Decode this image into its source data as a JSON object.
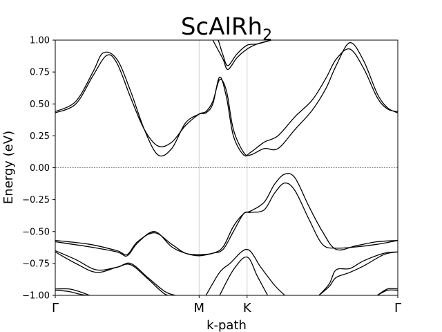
{
  "chart_data": {
    "type": "line",
    "title": "ScAlRh",
    "title_subscript": "2",
    "xlabel": "k-path",
    "ylabel": "Energy (eV)",
    "ylim": [
      -1.0,
      1.0
    ],
    "yticks": [
      -1.0,
      -0.75,
      -0.5,
      -0.25,
      0.0,
      0.25,
      0.5,
      0.75,
      1.0
    ],
    "ytick_labels": [
      "−1.00",
      "−0.75",
      "−0.50",
      "−0.25",
      "0.00",
      "0.25",
      "0.50",
      "0.75",
      "1.00"
    ],
    "xlim": [
      0,
      5
    ],
    "kpoints": [
      {
        "label": "Γ",
        "x": 0
      },
      {
        "label": "M",
        "x": 2.1
      },
      {
        "label": "K",
        "x": 2.8
      },
      {
        "label": "Γ",
        "x": 5
      }
    ],
    "fermi_level": 0.0,
    "fermi_color": "#ff0000",
    "line_color": "#000000",
    "grid": "vertical at high-symmetry points",
    "series": [
      {
        "values": [
          [
            0,
            0.43
          ],
          [
            0.3,
            0.5
          ],
          [
            0.55,
            0.72
          ],
          [
            0.75,
            0.88
          ],
          [
            0.9,
            0.82
          ],
          [
            1.1,
            0.55
          ],
          [
            1.3,
            0.3
          ],
          [
            1.5,
            0.17
          ],
          [
            1.7,
            0.2
          ],
          [
            1.9,
            0.33
          ],
          [
            2.1,
            0.42
          ],
          [
            2.2,
            0.44
          ],
          [
            2.3,
            0.52
          ],
          [
            2.4,
            0.69
          ],
          [
            2.5,
            0.6
          ],
          [
            2.6,
            0.3
          ],
          [
            2.75,
            0.12
          ],
          [
            2.85,
            0.1
          ],
          [
            3.05,
            0.15
          ],
          [
            3.25,
            0.15
          ],
          [
            3.5,
            0.3
          ],
          [
            3.75,
            0.45
          ],
          [
            3.95,
            0.62
          ],
          [
            4.1,
            0.8
          ],
          [
            4.3,
            0.98
          ],
          [
            4.5,
            0.84
          ],
          [
            4.7,
            0.58
          ],
          [
            4.85,
            0.47
          ],
          [
            5,
            0.43
          ]
        ]
      },
      {
        "values": [
          [
            0,
            0.44
          ],
          [
            0.3,
            0.52
          ],
          [
            0.55,
            0.75
          ],
          [
            0.7,
            0.9
          ],
          [
            0.9,
            0.85
          ],
          [
            1.1,
            0.6
          ],
          [
            1.3,
            0.3
          ],
          [
            1.5,
            0.1
          ],
          [
            1.7,
            0.15
          ],
          [
            1.9,
            0.35
          ],
          [
            2.1,
            0.42
          ],
          [
            2.2,
            0.43
          ],
          [
            2.3,
            0.5
          ],
          [
            2.4,
            0.71
          ],
          [
            2.5,
            0.55
          ],
          [
            2.6,
            0.25
          ],
          [
            2.75,
            0.1
          ],
          [
            2.85,
            0.12
          ],
          [
            3.05,
            0.2
          ],
          [
            3.25,
            0.25
          ],
          [
            3.5,
            0.4
          ],
          [
            3.75,
            0.53
          ],
          [
            3.95,
            0.7
          ],
          [
            4.1,
            0.85
          ],
          [
            4.3,
            0.93
          ],
          [
            4.5,
            0.78
          ],
          [
            4.7,
            0.55
          ],
          [
            4.85,
            0.46
          ],
          [
            5,
            0.44
          ]
        ]
      },
      {
        "values": [
          [
            2.3,
            1.0
          ],
          [
            2.38,
            0.92
          ],
          [
            2.45,
            0.85
          ],
          [
            2.52,
            0.77
          ],
          [
            2.65,
            0.86
          ],
          [
            2.8,
            0.93
          ],
          [
            2.95,
            0.97
          ],
          [
            3.15,
            1.0
          ]
        ]
      },
      {
        "values": [
          [
            2.38,
            1.0
          ],
          [
            2.45,
            0.88
          ],
          [
            2.52,
            0.8
          ],
          [
            2.65,
            0.89
          ],
          [
            2.8,
            0.96
          ],
          [
            2.95,
            0.97
          ],
          [
            3.15,
            1.0
          ]
        ]
      },
      {
        "values": [
          [
            0,
            -0.57
          ],
          [
            0.5,
            -0.6
          ],
          [
            0.9,
            -0.65
          ],
          [
            1.05,
            -0.68
          ],
          [
            1.2,
            -0.58
          ],
          [
            1.45,
            -0.51
          ],
          [
            1.7,
            -0.6
          ],
          [
            1.9,
            -0.67
          ],
          [
            2.1,
            -0.68
          ],
          [
            2.3,
            -0.67
          ],
          [
            2.45,
            -0.62
          ],
          [
            2.6,
            -0.46
          ],
          [
            2.75,
            -0.36
          ],
          [
            2.85,
            -0.34
          ],
          [
            3.05,
            -0.27
          ],
          [
            3.2,
            -0.13
          ],
          [
            3.35,
            -0.05
          ],
          [
            3.5,
            -0.08
          ],
          [
            3.7,
            -0.3
          ],
          [
            3.9,
            -0.5
          ],
          [
            4.1,
            -0.64
          ],
          [
            4.4,
            -0.61
          ],
          [
            4.7,
            -0.58
          ],
          [
            5,
            -0.57
          ]
        ]
      },
      {
        "values": [
          [
            0,
            -0.58
          ],
          [
            0.5,
            -0.62
          ],
          [
            0.9,
            -0.66
          ],
          [
            1.05,
            -0.69
          ],
          [
            1.2,
            -0.59
          ],
          [
            1.45,
            -0.5
          ],
          [
            1.7,
            -0.62
          ],
          [
            1.9,
            -0.67
          ],
          [
            2.1,
            -0.69
          ],
          [
            2.3,
            -0.67
          ],
          [
            2.45,
            -0.64
          ],
          [
            2.6,
            -0.5
          ],
          [
            2.75,
            -0.36
          ],
          [
            2.85,
            -0.35
          ],
          [
            3.05,
            -0.33
          ],
          [
            3.2,
            -0.2
          ],
          [
            3.35,
            -0.12
          ],
          [
            3.5,
            -0.18
          ],
          [
            3.7,
            -0.4
          ],
          [
            3.9,
            -0.6
          ],
          [
            4.1,
            -0.63
          ],
          [
            4.4,
            -0.62
          ],
          [
            4.7,
            -0.6
          ],
          [
            5,
            -0.57
          ]
        ]
      },
      {
        "values": [
          [
            0,
            -0.66
          ],
          [
            0.3,
            -0.75
          ],
          [
            0.6,
            -0.82
          ],
          [
            0.9,
            -0.78
          ],
          [
            1.1,
            -0.76
          ],
          [
            1.35,
            -0.87
          ],
          [
            1.6,
            -0.99
          ],
          [
            1.75,
            -1.0
          ]
        ]
      },
      {
        "values": [
          [
            0,
            -0.65
          ],
          [
            0.3,
            -0.72
          ],
          [
            0.6,
            -0.8
          ],
          [
            0.9,
            -0.78
          ],
          [
            1.1,
            -0.75
          ],
          [
            1.35,
            -0.86
          ],
          [
            1.6,
            -0.97
          ],
          [
            1.75,
            -1.0
          ]
        ]
      },
      {
        "values": [
          [
            2.2,
            -1.0
          ],
          [
            2.4,
            -0.82
          ],
          [
            2.55,
            -0.75
          ],
          [
            2.8,
            -0.64
          ],
          [
            3.0,
            -0.78
          ],
          [
            3.2,
            -0.92
          ],
          [
            3.35,
            -1.0
          ]
        ]
      },
      {
        "values": [
          [
            2.4,
            -1.0
          ],
          [
            2.6,
            -0.8
          ],
          [
            2.8,
            -0.7
          ],
          [
            2.95,
            -0.85
          ],
          [
            3.1,
            -1.0
          ]
        ]
      },
      {
        "values": [
          [
            3.85,
            -1.0
          ],
          [
            4.0,
            -0.93
          ],
          [
            4.1,
            -0.86
          ],
          [
            4.3,
            -0.82
          ],
          [
            4.5,
            -0.77
          ],
          [
            4.8,
            -0.68
          ],
          [
            5,
            -0.66
          ]
        ]
      },
      {
        "values": [
          [
            3.85,
            -1.0
          ],
          [
            4.0,
            -0.91
          ],
          [
            4.1,
            -0.8
          ],
          [
            4.3,
            -0.79
          ],
          [
            4.5,
            -0.73
          ],
          [
            4.8,
            -0.67
          ],
          [
            5,
            -0.66
          ]
        ]
      },
      {
        "values": [
          [
            0,
            -0.95
          ],
          [
            0.2,
            -0.95
          ],
          [
            0.35,
            -0.97
          ],
          [
            0.5,
            -1.0
          ]
        ]
      },
      {
        "values": [
          [
            0,
            -0.96
          ],
          [
            0.2,
            -0.97
          ],
          [
            0.35,
            -0.99
          ],
          [
            0.45,
            -1.0
          ]
        ]
      },
      {
        "values": [
          [
            4.7,
            -1.0
          ],
          [
            4.85,
            -0.96
          ],
          [
            5,
            -0.96
          ]
        ]
      },
      {
        "values": [
          [
            4.7,
            -1.0
          ],
          [
            4.85,
            -0.95
          ],
          [
            5,
            -0.95
          ]
        ]
      }
    ]
  }
}
